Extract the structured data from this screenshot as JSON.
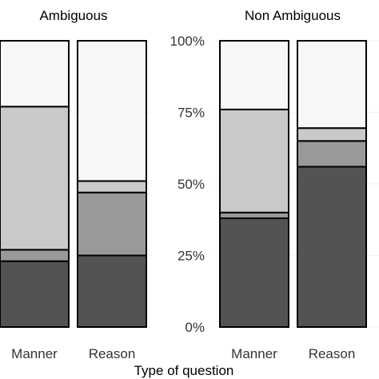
{
  "chart_data": {
    "type": "bar",
    "stacked": true,
    "normalized": true,
    "xlabel": "Type of question",
    "ylabel": "",
    "ylim": [
      0,
      1
    ],
    "y_ticks": [
      "0%",
      "25%",
      "50%",
      "75%",
      "100%"
    ],
    "y_tick_values": [
      0,
      0.25,
      0.5,
      0.75,
      1.0
    ],
    "grid": true,
    "legend": "none",
    "segment_colors": [
      "#535353",
      "#999999",
      "#c9c9c9",
      "#f7f7f7"
    ],
    "panels": [
      {
        "title": "Ambiguous",
        "categories": [
          "Manner",
          "Reason"
        ],
        "segments": [
          [
            0.23,
            0.04,
            0.5,
            0.23
          ],
          [
            0.25,
            0.22,
            0.04,
            0.49
          ]
        ]
      },
      {
        "title": "Non Ambiguous",
        "categories": [
          "Manner",
          "Reason"
        ],
        "segments": [
          [
            0.38,
            0.02,
            0.36,
            0.24
          ],
          [
            0.56,
            0.09,
            0.045,
            0.305
          ]
        ]
      }
    ]
  }
}
